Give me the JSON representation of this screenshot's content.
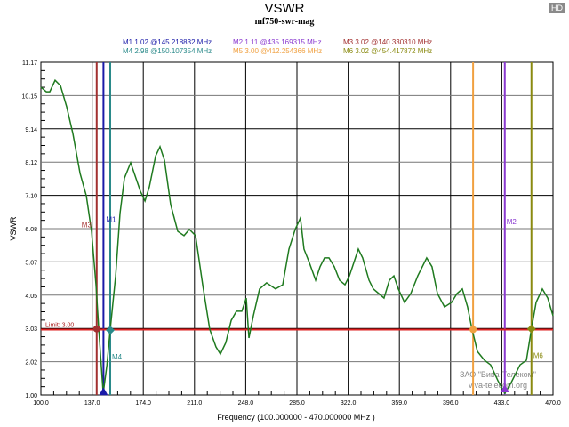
{
  "header": {
    "badge": "HD"
  },
  "chart_data": {
    "type": "line",
    "title": "VSWR",
    "subtitle": "mf750-swr-mag",
    "xlabel": "Frequency (100.000000 - 470.000000 MHz )",
    "ylabel": "VSWR",
    "xlim": [
      100,
      470
    ],
    "ylim": [
      1.0,
      11.17
    ],
    "xticks": [
      "100.0",
      "137.0",
      "174.0",
      "211.0",
      "248.0",
      "285.0",
      "322.0",
      "359.0",
      "396.0",
      "433.0",
      "470.0"
    ],
    "yticks": [
      "1.00",
      "2.02",
      "3.03",
      "4.05",
      "5.07",
      "6.08",
      "7.10",
      "8.12",
      "9.14",
      "10.15",
      "11.17"
    ],
    "grid": true,
    "limit": {
      "label": "Limit: 3.00",
      "value": 3.0,
      "color": "#dd2222"
    },
    "series": [
      {
        "name": "mf750-swr-mag",
        "color": "#1f7a1f",
        "x": [
          100,
          103.9,
          106.4,
          110.3,
          114.1,
          118.6,
          123.1,
          128.3,
          132.8,
          136.6,
          139.8,
          141.8,
          145.0,
          147.7,
          150.1,
          154.0,
          157.2,
          160.4,
          164.9,
          168.7,
          171.9,
          175.2,
          178.4,
          182.9,
          186.1,
          189.3,
          193.8,
          198.9,
          203.4,
          207.3,
          211.8,
          216.9,
          222.0,
          226.5,
          229.7,
          233.6,
          237.5,
          241.3,
          245.2,
          248.4,
          250.3,
          253.5,
          258.0,
          263.1,
          269.5,
          274.7,
          279.2,
          283.7,
          287.5,
          290.1,
          293.9,
          298.5,
          301.7,
          304.9,
          308.1,
          312.0,
          315.8,
          319.7,
          322.9,
          326.1,
          329.3,
          332.5,
          337.0,
          340.2,
          344.1,
          347.9,
          351.8,
          355.0,
          358.2,
          362.7,
          367.2,
          372.3,
          378.7,
          382.6,
          386.5,
          391.6,
          396.8,
          400.6,
          404.5,
          408.3,
          411.5,
          415.4,
          420.5,
          425.0,
          430.2,
          435.2,
          439.8,
          446.2,
          450.8,
          454.4,
          457.8,
          462.3,
          466.2,
          470
        ],
        "y": [
          10.41,
          10.27,
          10.27,
          10.62,
          10.46,
          9.81,
          8.99,
          7.77,
          7.09,
          6.0,
          4.37,
          3.01,
          1.05,
          1.92,
          3.0,
          4.64,
          6.55,
          7.63,
          8.1,
          7.63,
          7.23,
          6.93,
          7.36,
          8.31,
          8.59,
          8.18,
          6.82,
          6.0,
          5.87,
          6.06,
          5.87,
          4.37,
          3.01,
          2.47,
          2.25,
          2.6,
          3.28,
          3.56,
          3.56,
          3.96,
          2.74,
          3.42,
          4.24,
          4.43,
          4.24,
          4.37,
          5.46,
          6.06,
          6.41,
          5.46,
          5.05,
          4.51,
          4.92,
          5.19,
          5.19,
          4.92,
          4.51,
          4.37,
          4.64,
          5.05,
          5.46,
          5.19,
          4.51,
          4.24,
          4.1,
          3.96,
          4.51,
          4.64,
          4.24,
          3.83,
          4.1,
          4.64,
          5.19,
          4.92,
          4.1,
          3.69,
          3.83,
          4.1,
          4.24,
          3.69,
          3.01,
          2.33,
          2.06,
          1.92,
          1.44,
          1.05,
          1.38,
          1.92,
          2.06,
          3.01,
          3.83,
          4.24,
          3.96,
          3.42
        ]
      }
    ],
    "markers": [
      {
        "id": "M1",
        "value": 1.02,
        "freq": 145.218832,
        "text": "M1  1.02 @145.218832 MHz",
        "color": "#1a1aa8",
        "shape": "triangle"
      },
      {
        "id": "M2",
        "value": 1.11,
        "freq": 435.169315,
        "text": "M2  1.11 @435.169315 MHz",
        "color": "#8a3ad0",
        "shape": "triangle"
      },
      {
        "id": "M3",
        "value": 3.02,
        "freq": 140.33031,
        "text": "M3  3.02 @140.330310 MHz",
        "color": "#a23030",
        "shape": "circle"
      },
      {
        "id": "M4",
        "value": 2.98,
        "freq": 150.107354,
        "text": "M4  2.98 @150.107354 MHz",
        "color": "#2a8a8a",
        "shape": "diamond"
      },
      {
        "id": "M5",
        "value": 3.0,
        "freq": 412.254366,
        "text": "M5  3.00 @412.254366 MHz",
        "color": "#f0a040",
        "shape": "circle"
      },
      {
        "id": "M6",
        "value": 3.02,
        "freq": 454.417872,
        "text": "M6  3.02 @454.417872 MHz",
        "color": "#8a8a10",
        "shape": "diamond"
      }
    ]
  },
  "watermark": {
    "line1": "ЗАО \"Вива-Телеком\"",
    "line2": "viva-telecom.org"
  }
}
